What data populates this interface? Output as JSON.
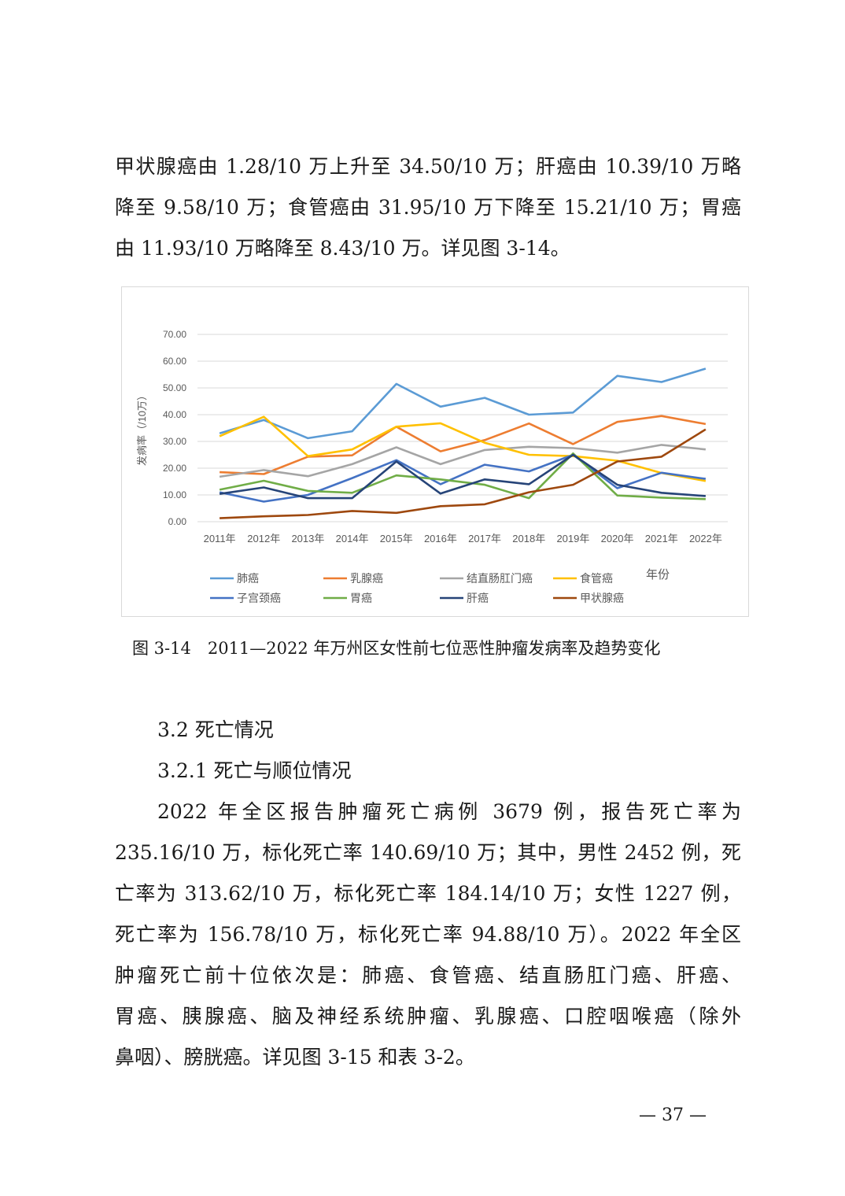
{
  "intro_lines": [
    "甲状腺癌由 1.28/10 万上升至 34.50/10 万；肝癌由 10.39/10 万略",
    "降至 9.58/10 万；食管癌由 31.95/10 万下降至 15.21/10 万；胃癌",
    "由 11.93/10 万略降至 8.43/10 万。详见图 3-14。"
  ],
  "figure_caption": "图 3-14　2011—2022 年万州区女性前七位恶性肿瘤发病率及趋势变化",
  "section_heading": "3.2  死亡情况",
  "subsection_heading": "3.2.1  死亡与顺位情况",
  "body_lines": [
    "2022 年全区报告肿瘤死亡病例 3679 例，报告死亡率为",
    "235.16/10 万，标化死亡率 140.69/10 万；其中，男性 2452 例，死",
    "亡率为 313.62/10 万，标化死亡率 184.14/10 万；女性 1227 例，",
    "死亡率为 156.78/10 万，标化死亡率 94.88/10 万）。2022 年全区",
    "肿瘤死亡前十位依次是：肺癌、食管癌、结直肠肛门癌、肝癌、",
    "胃癌、胰腺癌、脑及神经系统肿瘤、乳腺癌、口腔咽喉癌（除外",
    "鼻咽）、膀胱癌。详见图 3-15 和表 3-2。"
  ],
  "page_number": "— 37 —",
  "chart_data": {
    "type": "line",
    "ylabel": "发病率（/10万）",
    "xlabel": "年份",
    "ylim": [
      0,
      70
    ],
    "yticks": [
      "0.00",
      "10.00",
      "20.00",
      "30.00",
      "40.00",
      "50.00",
      "60.00",
      "70.00"
    ],
    "grid": true,
    "legend_position": "bottom",
    "categories": [
      "2011年",
      "2012年",
      "2013年",
      "2014年",
      "2015年",
      "2016年",
      "2017年",
      "2018年",
      "2019年",
      "2020年",
      "2021年",
      "2022年"
    ],
    "series": [
      {
        "name": "肺癌",
        "color": "#5b9bd5",
        "values": [
          33.0,
          38.0,
          31.2,
          33.8,
          51.5,
          43.0,
          46.3,
          40.0,
          40.8,
          54.5,
          52.2,
          57.2
        ]
      },
      {
        "name": "乳腺癌",
        "color": "#ed7d31",
        "values": [
          18.5,
          17.8,
          24.3,
          24.8,
          35.5,
          26.3,
          30.5,
          36.7,
          29.0,
          37.3,
          39.5,
          36.5
        ]
      },
      {
        "name": "结直肠肛门癌",
        "color": "#a5a5a5",
        "values": [
          16.8,
          19.3,
          17.0,
          21.5,
          27.8,
          21.5,
          26.8,
          28.0,
          27.5,
          25.8,
          28.7,
          27.0
        ]
      },
      {
        "name": "食管癌",
        "color": "#ffc000",
        "values": [
          31.95,
          39.2,
          24.5,
          27.0,
          35.5,
          36.8,
          29.5,
          25.0,
          24.5,
          22.8,
          18.2,
          15.21
        ]
      },
      {
        "name": "子宫颈癌",
        "color": "#4472c4",
        "values": [
          11.0,
          7.5,
          10.0,
          16.3,
          23.0,
          14.0,
          21.3,
          18.8,
          25.0,
          12.5,
          18.3,
          16.0
        ]
      },
      {
        "name": "胃癌",
        "color": "#70ad47",
        "values": [
          11.93,
          15.3,
          11.5,
          10.8,
          17.3,
          15.8,
          13.8,
          8.8,
          25.5,
          9.8,
          9.0,
          8.43
        ]
      },
      {
        "name": "肝癌",
        "color": "#264478",
        "values": [
          10.39,
          12.8,
          8.8,
          8.8,
          22.5,
          10.5,
          15.8,
          14.0,
          25.0,
          13.8,
          10.8,
          9.58
        ]
      },
      {
        "name": "甲状腺癌",
        "color": "#9e480e",
        "values": [
          1.28,
          2.0,
          2.5,
          4.0,
          3.3,
          5.8,
          6.5,
          11.0,
          13.8,
          22.5,
          24.3,
          34.5
        ]
      }
    ]
  }
}
